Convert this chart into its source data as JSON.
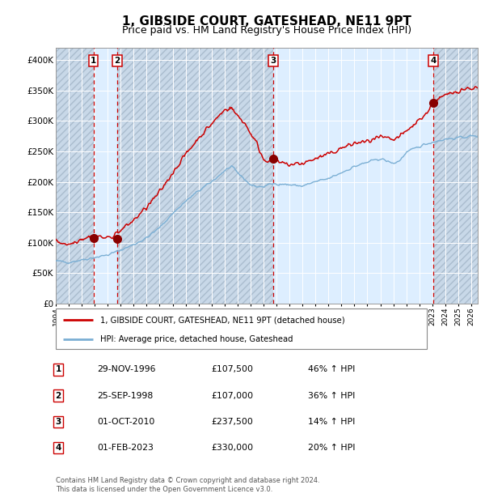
{
  "title": "1, GIBSIDE COURT, GATESHEAD, NE11 9PT",
  "subtitle": "Price paid vs. HM Land Registry's House Price Index (HPI)",
  "title_fontsize": 11,
  "subtitle_fontsize": 9,
  "xlim": [
    1994.0,
    2026.5
  ],
  "ylim": [
    0,
    420000
  ],
  "yticks": [
    0,
    50000,
    100000,
    150000,
    200000,
    250000,
    300000,
    350000,
    400000
  ],
  "ytick_labels": [
    "£0",
    "£50K",
    "£100K",
    "£150K",
    "£200K",
    "£250K",
    "£300K",
    "£350K",
    "£400K"
  ],
  "bg_color": "#ddeeff",
  "hatch_color": "#bbccdd",
  "grid_color": "#ffffff",
  "red_line_color": "#cc0000",
  "blue_line_color": "#7bafd4",
  "sale_marker_color": "#880000",
  "vline_color": "#cc0000",
  "purchases": [
    {
      "num": 1,
      "date_x": 1996.91,
      "price": 107500,
      "label": "1"
    },
    {
      "num": 2,
      "date_x": 1998.73,
      "price": 107000,
      "label": "2"
    },
    {
      "num": 3,
      "date_x": 2010.75,
      "price": 237500,
      "label": "3"
    },
    {
      "num": 4,
      "date_x": 2023.08,
      "price": 330000,
      "label": "4"
    }
  ],
  "legend_line1": "1, GIBSIDE COURT, GATESHEAD, NE11 9PT (detached house)",
  "legend_line2": "HPI: Average price, detached house, Gateshead",
  "table_rows": [
    [
      "1",
      "29-NOV-1996",
      "£107,500",
      "46% ↑ HPI"
    ],
    [
      "2",
      "25-SEP-1998",
      "£107,000",
      "36% ↑ HPI"
    ],
    [
      "3",
      "01-OCT-2010",
      "£237,500",
      "14% ↑ HPI"
    ],
    [
      "4",
      "01-FEB-2023",
      "£330,000",
      "20% ↑ HPI"
    ]
  ],
  "footer": "Contains HM Land Registry data © Crown copyright and database right 2024.\nThis data is licensed under the Open Government Licence v3.0.",
  "xtick_years": [
    1994,
    1995,
    1996,
    1997,
    1998,
    1999,
    2000,
    2001,
    2002,
    2003,
    2004,
    2005,
    2006,
    2007,
    2008,
    2009,
    2010,
    2011,
    2012,
    2013,
    2014,
    2015,
    2016,
    2017,
    2018,
    2019,
    2020,
    2021,
    2022,
    2023,
    2024,
    2025,
    2026
  ]
}
